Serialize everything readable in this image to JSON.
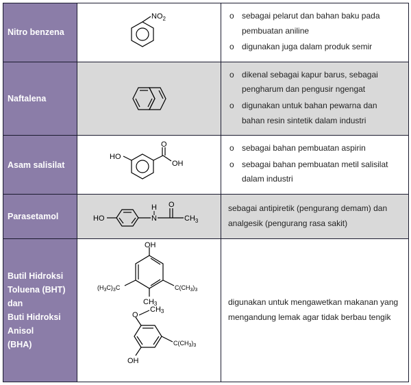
{
  "colors": {
    "header_bg": "#8b7da8",
    "header_text": "#ffffff",
    "border": "#1a1a2e",
    "alt_row_bg": "#d9d9d9",
    "text": "#222222"
  },
  "typography": {
    "body_font": "Arial",
    "body_size_pt": 9,
    "header_weight": "bold"
  },
  "rows": [
    {
      "name": "Nitro benzena",
      "alt": false,
      "desc_type": "list",
      "desc": [
        "sebagai pelarut dan bahan baku pada pembuatan aniline",
        "digunakan juga dalam produk semir"
      ],
      "structure": {
        "type": "nitrobenzene",
        "labels": [
          "NO",
          "2"
        ]
      }
    },
    {
      "name": "Naftalena",
      "alt": true,
      "desc_type": "list",
      "desc": [
        "dikenal sebagai kapur barus, sebagai pengharum dan pengusir ngengat",
        "digunakan untuk bahan pewarna dan bahan resin sintetik dalam industri"
      ],
      "structure": {
        "type": "naphthalene"
      }
    },
    {
      "name": "Asam salisilat",
      "alt": false,
      "desc_type": "list",
      "desc": [
        "sebagai bahan pembuatan aspirin",
        "sebagai bahan pembuatan metil salisilat dalam industri"
      ],
      "structure": {
        "type": "salicylic",
        "labels": [
          "HO",
          "O",
          "OH"
        ]
      }
    },
    {
      "name": "Parasetamol",
      "alt": true,
      "desc_type": "plain",
      "desc": [
        "sebagai antipiretik (pengurang demam) dan analgesik (pengurang rasa sakit)"
      ],
      "structure": {
        "type": "paracetamol",
        "labels": [
          "HO",
          "N",
          "H",
          "O",
          "CH",
          "3"
        ]
      }
    },
    {
      "name_html": "Butil Hidroksi<br>Toluena (BHT)<br>dan<br>Buti Hidroksi Anisol<br>(BHA)",
      "name": "Butil Hidroksi Toluena (BHT) dan Buti Hidroksi Anisol (BHA)",
      "alt": false,
      "desc_type": "plain",
      "desc": [
        "digunakan untuk mengawetkan makanan yang mengandung lemak agar tidak berbau tengik"
      ],
      "structure": {
        "type": "bht-bha",
        "labels": [
          "OH",
          "(H3C)3C",
          "C(CH3)3",
          "CH3",
          "O",
          "CH3",
          "C(CH3)3",
          "OH"
        ]
      }
    }
  ]
}
